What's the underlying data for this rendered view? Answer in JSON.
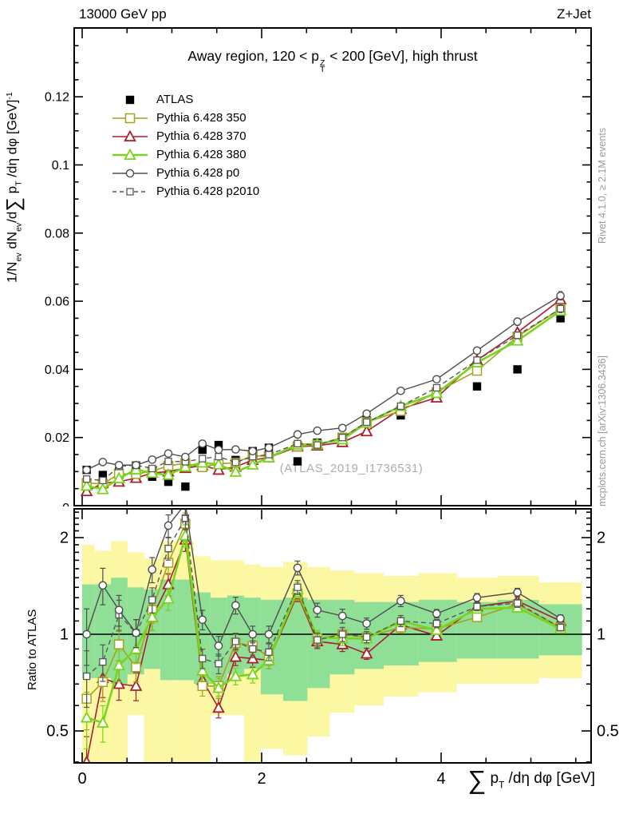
{
  "header": {
    "left": "13000 GeV pp",
    "right": "Z+Jet"
  },
  "side_notes": {
    "top": "Rivet 4.1.0, ≥ 2.1M events",
    "bottom": "mcplots.cern.ch [arXiv:1306.3436]"
  },
  "watermark": "(ATLAS_2019_I1736531)",
  "labels": {
    "title": {
      "pre": "Away region, 120 < p",
      "sup": "Z",
      "sub": "T",
      "post": " < 200 [GeV], high thrust"
    },
    "y_main": {
      "pre": "1/N",
      "sub1": "ev",
      "mid1": " dN",
      "sub2": "ev",
      "mid2": "/d",
      "sigma": "∑",
      "mid3": " p",
      "sub3": "T",
      "tail": " /dη dφ  [GeV]",
      "sup": "-1"
    },
    "y_ratio": "Ratio to ATLAS",
    "x": {
      "sigma": "∑",
      "p": " p",
      "sub": "T",
      "tail": " /dη dφ [GeV]"
    }
  },
  "chart_data": {
    "type": "line",
    "title": "Away region, 120 < p_T^Z < 200 [GeV], high thrust",
    "xlabel": "∑ p_T /dη dφ [GeV]",
    "ylabel": "1/N_ev dN_ev/d∑ p_T /dη dφ [GeV]^-1",
    "ylabel_ratio": "Ratio to ATLAS",
    "legend_position": "top-left",
    "x_range": [
      -0.09,
      5.67
    ],
    "y_range_main": [
      0,
      0.1402
    ],
    "y_range_ratio": [
      0.4,
      2.46
    ],
    "ratio_y_scale": "log",
    "reference_line": 1,
    "x_ticks": {
      "major": [
        0,
        2,
        4
      ],
      "labels": [
        "0",
        "2",
        "4"
      ],
      "minor_step": 0.5
    },
    "y_ticks_main": {
      "major": [
        0,
        0.02,
        0.04,
        0.06,
        0.08,
        0.1,
        0.12
      ],
      "labels": [
        "0",
        "0.02",
        "0.04",
        "0.06",
        "0.08",
        "0.1",
        "0.12"
      ],
      "minor_step": 0.005
    },
    "y_ticks_ratio": {
      "major": [
        0.5,
        1,
        2
      ],
      "labels": [
        "0.5",
        "1",
        "2"
      ]
    },
    "x": [
      0.05,
      0.23,
      0.41,
      0.6,
      0.78,
      0.96,
      1.15,
      1.34,
      1.52,
      1.71,
      1.9,
      2.08,
      2.4,
      2.62,
      2.9,
      3.17,
      3.55,
      3.95,
      4.4,
      4.85,
      5.33
    ],
    "bin_edges": [
      0,
      0.14,
      0.32,
      0.505,
      0.69,
      0.87,
      1.055,
      1.245,
      1.43,
      1.615,
      1.805,
      1.99,
      2.24,
      2.51,
      2.76,
      3.035,
      3.36,
      3.75,
      4.175,
      4.625,
      5.09,
      5.57
    ],
    "main_err_rel": 0.02,
    "ratio_err_rel": [
      0.2,
      0.13,
      0.11,
      0.1,
      0.09,
      0.08,
      0.08,
      0.07,
      0.07,
      0.06,
      0.06,
      0.06,
      0.05,
      0.05,
      0.05,
      0.04,
      0.04,
      0.03,
      0.03,
      0.03,
      0.025
    ],
    "series": [
      {
        "name": "ATLAS",
        "slug": "atlas",
        "color": "#000000",
        "marker": "square-filled",
        "line": "none",
        "main": [
          0.0105,
          0.009,
          0.01,
          0.0118,
          0.0085,
          0.007,
          0.0056,
          0.0164,
          0.0178,
          0.0134,
          0.016,
          0.017,
          0.013,
          0.0185,
          0.02,
          0.025,
          0.0265,
          0.032,
          0.035,
          0.04,
          0.055
        ]
      },
      {
        "name": "Pythia 6.428 350",
        "slug": "pythia-350",
        "color": "#a6a11e",
        "marker": "square-open",
        "line": "solid",
        "lw": 1.6,
        "main": [
          0.0066,
          0.0064,
          0.0093,
          0.0093,
          0.0101,
          0.0117,
          0.0124,
          0.0113,
          0.0123,
          0.0126,
          0.0147,
          0.0145,
          0.0174,
          0.0179,
          0.02,
          0.0245,
          0.0278,
          0.0333,
          0.0396,
          0.0496,
          0.0578
        ],
        "ratio": [
          0.63,
          0.71,
          0.93,
          0.79,
          1.19,
          1.67,
          2.21,
          0.69,
          0.69,
          0.94,
          0.92,
          0.85,
          1.34,
          0.97,
          1.0,
          0.98,
          1.05,
          1.04,
          1.13,
          1.24,
          1.05
        ]
      },
      {
        "name": "Pythia 6.428 370",
        "slug": "pythia-370",
        "color": "#a81e2e",
        "marker": "triangle-open",
        "line": "solid",
        "lw": 1.6,
        "main": [
          0.0042,
          0.0066,
          0.007,
          0.0081,
          0.0096,
          0.01,
          0.011,
          0.0118,
          0.0105,
          0.0114,
          0.0134,
          0.0141,
          0.0173,
          0.0176,
          0.0186,
          0.0218,
          0.0284,
          0.0317,
          0.0427,
          0.0508,
          0.0605
        ],
        "ratio": [
          0.4,
          0.73,
          0.7,
          0.69,
          1.13,
          1.43,
          1.97,
          0.72,
          0.59,
          0.85,
          0.84,
          0.83,
          1.33,
          0.95,
          0.93,
          0.87,
          1.07,
          0.99,
          1.22,
          1.27,
          1.1
        ]
      },
      {
        "name": "Pythia 6.428 380",
        "slug": "pythia-380",
        "color": "#77d51c",
        "marker": "triangle-open",
        "line": "solid",
        "lw": 2.6,
        "main": [
          0.0058,
          0.0048,
          0.008,
          0.0106,
          0.0096,
          0.009,
          0.0114,
          0.0126,
          0.0121,
          0.0099,
          0.012,
          0.0141,
          0.0179,
          0.0181,
          0.0194,
          0.0243,
          0.0292,
          0.033,
          0.042,
          0.0484,
          0.0572
        ],
        "ratio": [
          0.55,
          0.53,
          0.8,
          0.9,
          1.13,
          1.29,
          2.03,
          0.77,
          0.68,
          0.74,
          0.75,
          0.83,
          1.38,
          0.98,
          0.97,
          0.97,
          1.1,
          1.03,
          1.2,
          1.21,
          1.04
        ]
      },
      {
        "name": "Pythia 6.428 p0",
        "slug": "pythia-p0",
        "color": "#4d4d4d",
        "marker": "circle-open",
        "line": "solid",
        "lw": 1.4,
        "main": [
          0.0105,
          0.0128,
          0.0119,
          0.0119,
          0.0135,
          0.0153,
          0.0143,
          0.0182,
          0.0164,
          0.0165,
          0.016,
          0.017,
          0.0209,
          0.022,
          0.0228,
          0.027,
          0.0337,
          0.0371,
          0.0455,
          0.054,
          0.0616
        ],
        "ratio": [
          1.0,
          1.42,
          1.19,
          1.01,
          1.59,
          2.18,
          2.55,
          1.11,
          0.92,
          1.23,
          1.0,
          1.0,
          1.61,
          1.19,
          1.14,
          1.08,
          1.27,
          1.16,
          1.3,
          1.35,
          1.12
        ]
      },
      {
        "name": "Pythia 6.428 p2010",
        "slug": "pythia-p2010",
        "color": "#575757",
        "marker": "square-open-small",
        "line": "dashed",
        "lw": 1.4,
        "main": [
          0.0078,
          0.0074,
          0.0115,
          0.0119,
          0.0109,
          0.013,
          0.0129,
          0.0138,
          0.0144,
          0.0127,
          0.0144,
          0.015,
          0.0182,
          0.0178,
          0.02,
          0.0245,
          0.0292,
          0.0346,
          0.0427,
          0.05,
          0.0578
        ],
        "ratio": [
          0.74,
          0.82,
          1.15,
          1.01,
          1.28,
          1.85,
          2.3,
          0.84,
          0.81,
          0.95,
          0.9,
          0.88,
          1.4,
          0.96,
          1.0,
          0.98,
          1.1,
          1.08,
          1.22,
          1.25,
          1.05
        ]
      }
    ],
    "uncertainty_bands": {
      "inner": {
        "color": "#8fe096",
        "lo": [
          0.73,
          0.73,
          0.7,
          0.75,
          0.78,
          0.72,
          0.72,
          0.7,
          0.7,
          0.75,
          0.78,
          0.65,
          0.62,
          0.68,
          0.75,
          0.78,
          0.8,
          0.82,
          0.84,
          0.84,
          0.86
        ],
        "hi": [
          1.43,
          1.43,
          1.5,
          1.4,
          1.38,
          1.48,
          1.48,
          1.35,
          1.3,
          1.32,
          1.3,
          1.28,
          1.3,
          1.28,
          1.28,
          1.26,
          1.26,
          1.28,
          1.26,
          1.28,
          1.24
        ]
      },
      "outer": {
        "color": "#fbf7a3",
        "lo": [
          0.38,
          0.38,
          0.38,
          0.56,
          0.38,
          0.38,
          0.38,
          0.38,
          0.56,
          0.56,
          0.4,
          0.44,
          0.42,
          0.48,
          0.57,
          0.6,
          0.64,
          0.66,
          0.7,
          0.7,
          0.73
        ],
        "hi": [
          1.9,
          1.82,
          1.95,
          1.8,
          1.72,
          1.95,
          1.95,
          1.75,
          1.7,
          1.7,
          1.65,
          1.62,
          1.68,
          1.62,
          1.58,
          1.55,
          1.52,
          1.55,
          1.5,
          1.52,
          1.45
        ]
      }
    }
  }
}
